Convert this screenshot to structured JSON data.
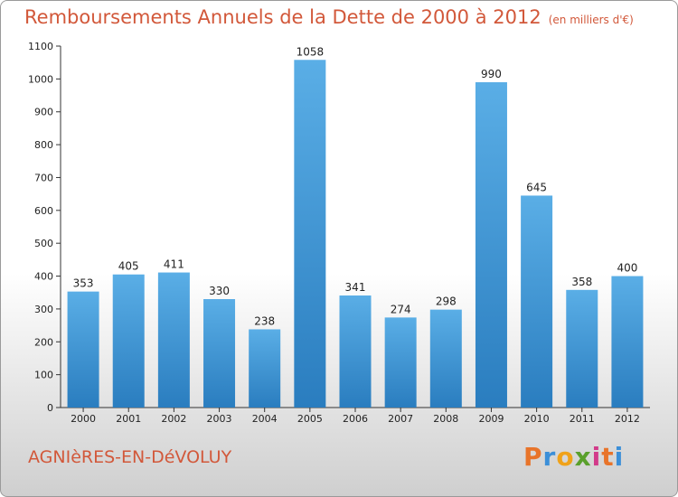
{
  "header": {
    "title": "Remboursements Annuels de la Dette de 2000 à 2012",
    "unit": "(en milliers d'€)"
  },
  "footer": {
    "commune": "AGNIèRES-EN-DéVOLUY",
    "logo": "Proxiti"
  },
  "colors": {
    "bar_light": "#5aaee6",
    "bar_dark": "#2a7dbf",
    "title": "#d2583a",
    "logo": [
      "#e8742a",
      "#3c8fd8",
      "#f0a21a",
      "#5aa02c",
      "#d23a8a",
      "#e8742a",
      "#3c8fd8"
    ]
  },
  "chart_data": {
    "type": "bar",
    "title": "Remboursements Annuels de la Dette de 2000 à 2012",
    "categories": [
      "2000",
      "2001",
      "2002",
      "2003",
      "2004",
      "2005",
      "2006",
      "2007",
      "2008",
      "2009",
      "2010",
      "2011",
      "2012"
    ],
    "values": [
      353,
      405,
      411,
      330,
      238,
      1058,
      341,
      274,
      298,
      990,
      645,
      358,
      400
    ],
    "ylim": [
      0,
      1100
    ],
    "yticks": [
      0,
      100,
      200,
      300,
      400,
      500,
      600,
      700,
      800,
      900,
      1000,
      1100
    ],
    "grid": false,
    "xlabel": "",
    "ylabel": ""
  }
}
